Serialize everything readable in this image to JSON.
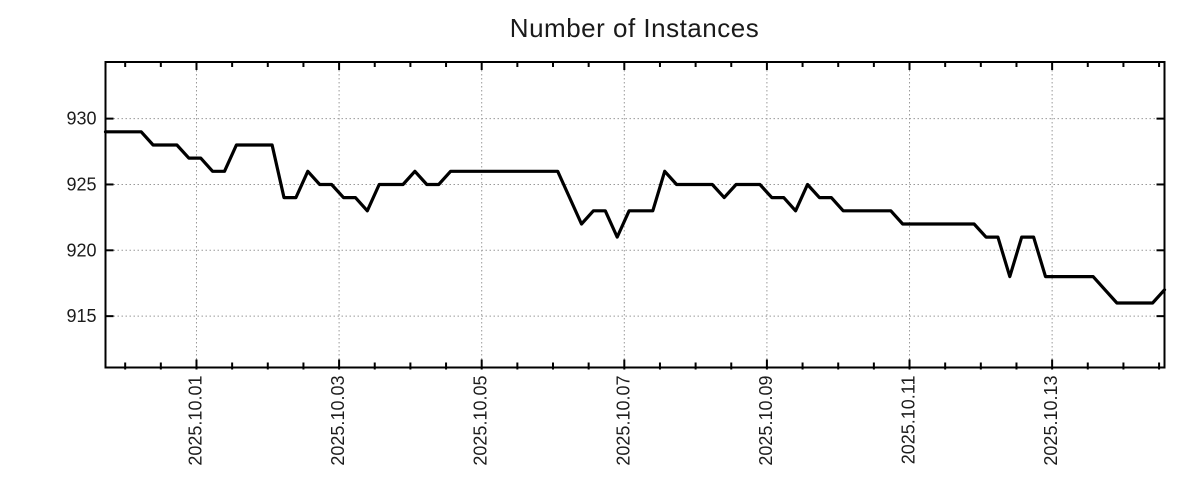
{
  "title": "Number of Instances",
  "colors": {
    "line": "#000000",
    "grid": "#999999",
    "border": "#000000",
    "background": "#ffffff",
    "text": "#1c1c1c"
  },
  "chart_data": {
    "type": "line",
    "title": "Number of Instances",
    "xlabel": "",
    "ylabel": "",
    "grid": true,
    "legend": false,
    "x_axis": {
      "tick_labels": [
        "2025.10.01",
        "2025.10.03",
        "2025.10.05",
        "2025.10.07",
        "2025.10.09",
        "2025.10.11",
        "2025.10.13"
      ],
      "tick_day_offsets": [
        0,
        2,
        4,
        6,
        8,
        10,
        12
      ],
      "xlim_day_offsets": [
        -1.276,
        13.576
      ],
      "minor_tick_step_days": 0.5,
      "labels_rotated_degrees": -90
    },
    "y_axis": {
      "tick_labels": [
        "915",
        "920",
        "925",
        "930"
      ],
      "ticks": [
        915,
        920,
        925,
        930
      ],
      "ylim": [
        911.1,
        934.3
      ]
    },
    "sampling": "one point every ~4 hours, edge-to-edge across plot",
    "series": [
      {
        "name": "instances",
        "values": [
          929,
          929,
          929,
          929,
          928,
          928,
          928,
          927,
          927,
          926,
          926,
          928,
          928,
          928,
          928,
          924,
          924,
          926,
          925,
          925,
          924,
          924,
          923,
          925,
          925,
          925,
          926,
          925,
          925,
          926,
          926,
          926,
          926,
          926,
          926,
          926,
          926,
          926,
          926,
          924,
          922,
          923,
          923,
          921,
          923,
          923,
          923,
          926,
          925,
          925,
          925,
          925,
          924,
          925,
          925,
          925,
          924,
          924,
          923,
          925,
          924,
          924,
          923,
          923,
          923,
          923,
          923,
          922,
          922,
          922,
          922,
          922,
          922,
          922,
          921,
          921,
          918,
          921,
          921,
          918,
          918,
          918,
          918,
          918,
          917,
          916,
          916,
          916,
          916,
          917
        ]
      }
    ]
  }
}
